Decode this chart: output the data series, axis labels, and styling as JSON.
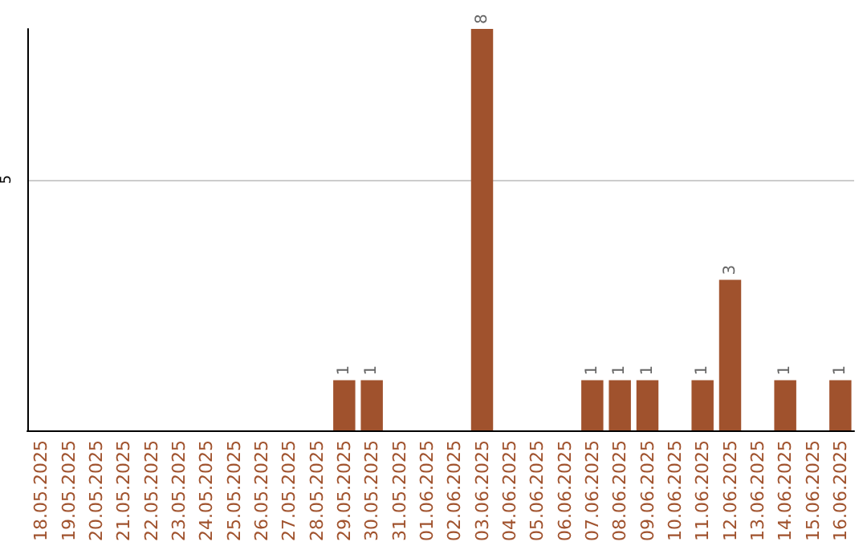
{
  "chart_data": {
    "type": "bar",
    "categories": [
      "18.05.2025",
      "19.05.2025",
      "20.05.2025",
      "21.05.2025",
      "22.05.2025",
      "23.05.2025",
      "24.05.2025",
      "25.05.2025",
      "26.05.2025",
      "27.05.2025",
      "28.05.2025",
      "29.05.2025",
      "30.05.2025",
      "31.05.2025",
      "01.06.2025",
      "02.06.2025",
      "03.06.2025",
      "04.06.2025",
      "05.06.2025",
      "06.06.2025",
      "07.06.2025",
      "08.06.2025",
      "09.06.2025",
      "10.06.2025",
      "11.06.2025",
      "12.06.2025",
      "13.06.2025",
      "14.06.2025",
      "15.06.2025",
      "16.06.2025"
    ],
    "values": [
      0,
      0,
      0,
      0,
      0,
      0,
      0,
      0,
      0,
      0,
      0,
      1,
      1,
      0,
      0,
      0,
      8,
      0,
      0,
      0,
      1,
      1,
      1,
      0,
      1,
      3,
      0,
      1,
      0,
      1
    ],
    "value_labels": [
      null,
      null,
      null,
      null,
      null,
      null,
      null,
      null,
      null,
      null,
      null,
      "1",
      "1",
      null,
      null,
      null,
      "8",
      null,
      null,
      null,
      "1",
      "1",
      "1",
      null,
      "1",
      "3",
      null,
      "1",
      null,
      "1"
    ],
    "color": "#a0522d",
    "ylim": [
      0,
      8
    ],
    "yticks": [
      5
    ],
    "grid": "y"
  }
}
